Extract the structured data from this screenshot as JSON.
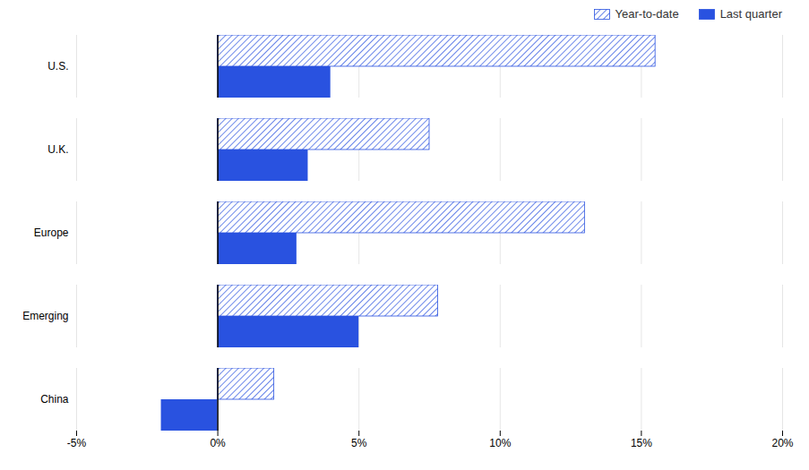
{
  "chart_data": {
    "type": "bar",
    "orientation": "horizontal",
    "categories": [
      "U.S.",
      "U.K.",
      "Europe",
      "Emerging",
      "China"
    ],
    "series": [
      {
        "name": "Year-to-date",
        "color": "#2952e0",
        "values": [
          15.5,
          7.5,
          13.0,
          7.8,
          2.0
        ]
      },
      {
        "name": "Last quarter",
        "color": "#2952e0",
        "values": [
          4.0,
          3.2,
          2.8,
          5.0,
          -2.0
        ]
      }
    ],
    "xlim": [
      -5,
      20
    ],
    "xticks": [
      {
        "value": -5,
        "label": "-5%"
      },
      {
        "value": 0,
        "label": "0%"
      },
      {
        "value": 5,
        "label": "5%"
      },
      {
        "value": 10,
        "label": "10%"
      },
      {
        "value": 15,
        "label": "15%"
      },
      {
        "value": 20,
        "label": "20%"
      }
    ],
    "grid": true,
    "legend": "upper right"
  }
}
